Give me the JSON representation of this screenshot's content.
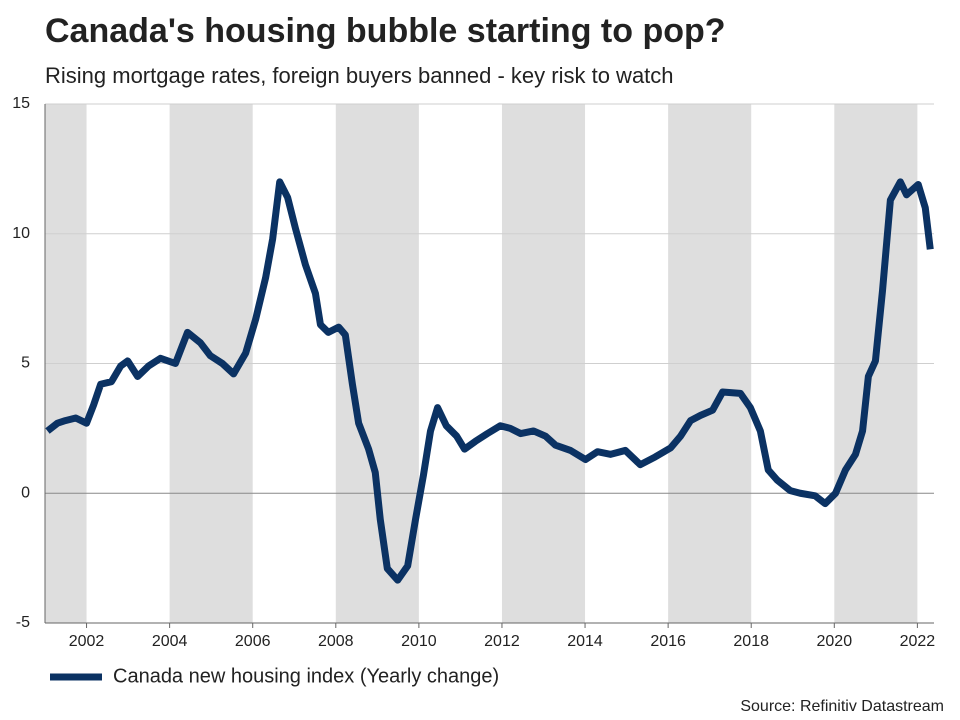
{
  "chart_data": {
    "type": "line",
    "title": "Canada's housing bubble starting to pop?",
    "subtitle": "Rising mortgage rates, foreign buyers banned - key risk to watch",
    "source": "Source: Refinitiv Datastream",
    "xlim": [
      2001,
      2022.4
    ],
    "xticks": [
      2002,
      2004,
      2006,
      2008,
      2010,
      2012,
      2014,
      2016,
      2018,
      2020,
      2022
    ],
    "ylim": [
      -5,
      15
    ],
    "yticks": [
      -5,
      0,
      5,
      10,
      15
    ],
    "grid": true,
    "legend": "bottom-left",
    "x": [
      2001.06,
      2001.3,
      2001.49,
      2001.74,
      2002.0,
      2002.17,
      2002.34,
      2002.6,
      2002.82,
      2002.99,
      2003.23,
      2003.49,
      2003.78,
      2004.14,
      2004.43,
      2004.74,
      2004.98,
      2005.27,
      2005.54,
      2005.83,
      2006.07,
      2006.31,
      2006.48,
      2006.65,
      2006.84,
      2007.03,
      2007.27,
      2007.51,
      2007.63,
      2007.82,
      2008.07,
      2008.23,
      2008.4,
      2008.55,
      2008.79,
      2008.95,
      2009.07,
      2009.24,
      2009.49,
      2009.73,
      2009.92,
      2010.11,
      2010.28,
      2010.45,
      2010.66,
      2010.91,
      2011.1,
      2011.36,
      2011.65,
      2011.96,
      2012.2,
      2012.45,
      2012.76,
      2013.05,
      2013.29,
      2013.65,
      2014.01,
      2014.3,
      2014.61,
      2014.97,
      2015.33,
      2015.69,
      2016.06,
      2016.3,
      2016.54,
      2016.78,
      2017.07,
      2017.31,
      2017.74,
      2017.98,
      2018.22,
      2018.41,
      2018.63,
      2018.94,
      2019.18,
      2019.54,
      2019.78,
      2020.03,
      2020.27,
      2020.51,
      2020.68,
      2020.82,
      2020.99,
      2021.16,
      2021.35,
      2021.59,
      2021.74,
      2022.02,
      2022.19,
      2022.31
    ],
    "series": [
      {
        "name": "Canada new housing index (Yearly change)",
        "color": "#0b3263",
        "values": [
          2.4,
          2.7,
          2.8,
          2.9,
          2.7,
          3.4,
          4.2,
          4.3,
          4.9,
          5.1,
          4.5,
          4.9,
          5.2,
          5.0,
          6.2,
          5.8,
          5.3,
          5.0,
          4.6,
          5.4,
          6.7,
          8.3,
          9.8,
          12.0,
          11.4,
          10.2,
          8.8,
          7.7,
          6.5,
          6.2,
          6.4,
          6.1,
          4.2,
          2.7,
          1.7,
          0.8,
          -1.0,
          -2.9,
          -3.35,
          -2.8,
          -1.0,
          0.7,
          2.4,
          3.3,
          2.6,
          2.2,
          1.7,
          2.0,
          2.3,
          2.6,
          2.5,
          2.3,
          2.4,
          2.2,
          1.85,
          1.65,
          1.3,
          1.6,
          1.5,
          1.65,
          1.1,
          1.4,
          1.75,
          2.2,
          2.8,
          3.0,
          3.2,
          3.9,
          3.85,
          3.3,
          2.4,
          0.9,
          0.5,
          0.1,
          0.0,
          -0.1,
          -0.4,
          0.0,
          0.9,
          1.5,
          2.4,
          4.5,
          5.1,
          7.8,
          11.3,
          12.0,
          11.5,
          11.9,
          11.0,
          9.4
        ]
      }
    ]
  }
}
